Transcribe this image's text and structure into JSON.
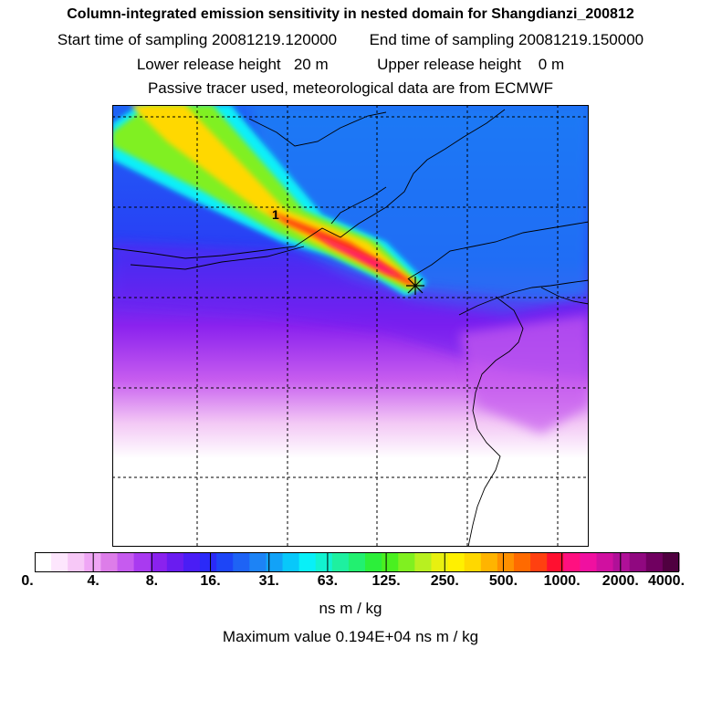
{
  "header": {
    "title": "Column-integrated emission sensitivity in nested domain for Shangdianzi_200812",
    "start_label": "Start time of sampling 20081219.120000",
    "end_label": "End time of sampling 20081219.150000",
    "lower_label": "Lower release height   20 m",
    "upper_label": "Upper release height    0 m",
    "info": "Passive tracer used, meteorological data are from ECMWF"
  },
  "map": {
    "marker_label": "1",
    "receptor_symbol": "star-cross"
  },
  "colorbar": {
    "tick_labels": [
      "0.",
      "4.",
      "8.",
      "16.",
      "31.",
      "63.",
      "125.",
      "250.",
      "500.",
      "1000.",
      "2000.",
      "4000."
    ],
    "colors": [
      "#ffffff",
      "#fde6fd",
      "#f7c8f7",
      "#efa6f5",
      "#dd7de9",
      "#c65bef",
      "#a93af0",
      "#8a22ee",
      "#6a1cf0",
      "#4a1df5",
      "#2a2af8",
      "#1d45f7",
      "#1e63f5",
      "#1d83f5",
      "#12a2f7",
      "#08c8fa",
      "#08f0f8",
      "#12f2d0",
      "#1ef0a0",
      "#22f070",
      "#2cef3a",
      "#4af020",
      "#80f020",
      "#b8f020",
      "#e8f010",
      "#fff000",
      "#ffd800",
      "#ffb400",
      "#ff9000",
      "#ff6a00",
      "#ff4010",
      "#ff1030",
      "#ff1080",
      "#f010a0",
      "#d010a0",
      "#b01098",
      "#900880",
      "#700060",
      "#500040"
    ],
    "units": "ns m / kg",
    "max_value": "Maximum value  0.194E+04 ns m / kg"
  }
}
